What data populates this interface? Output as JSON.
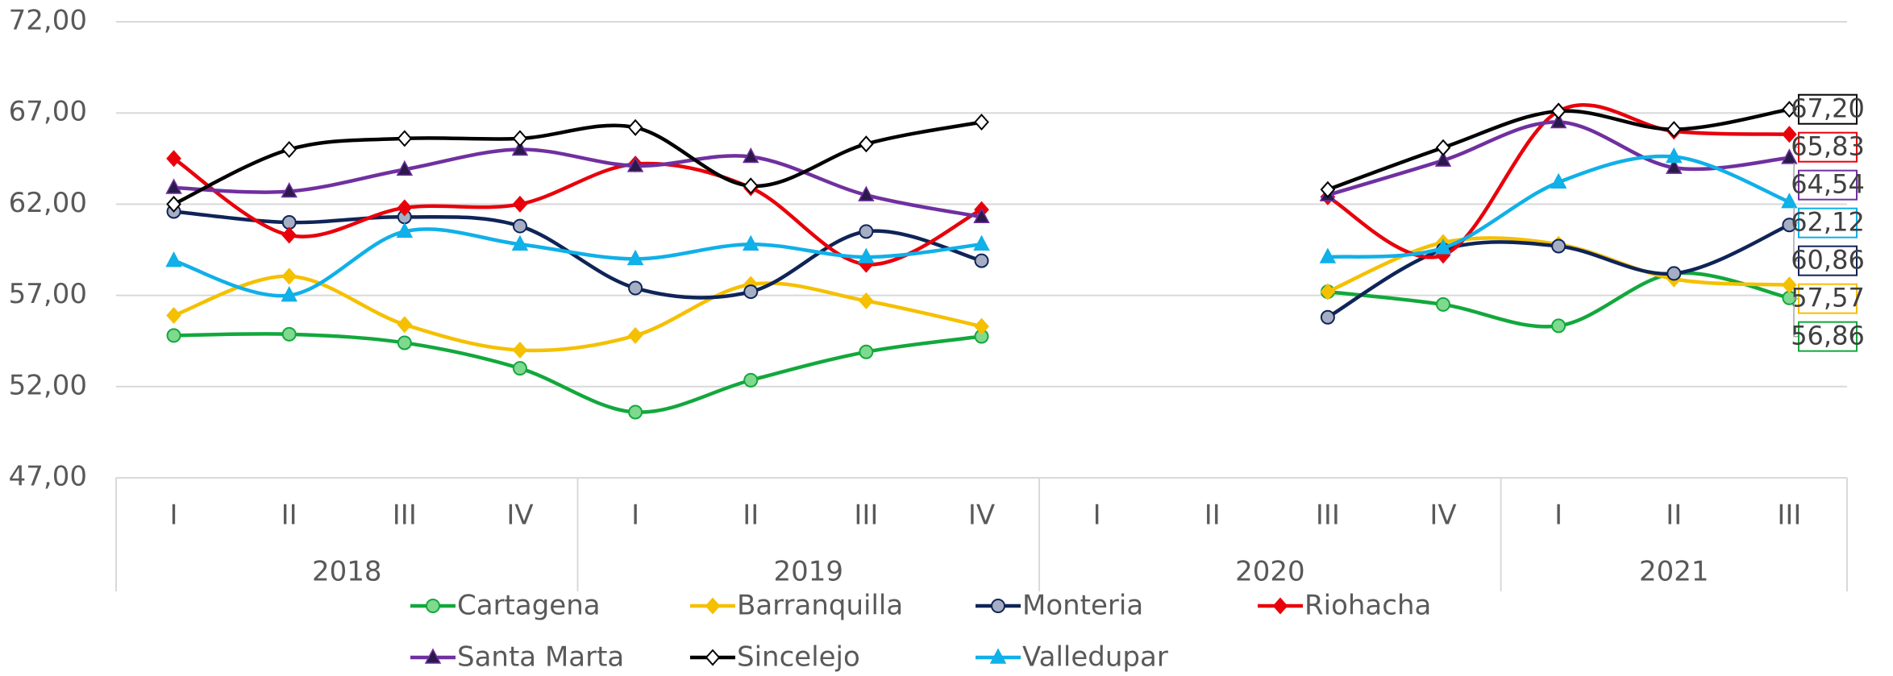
{
  "chart_data": {
    "type": "line",
    "categories": [
      "I",
      "II",
      "III",
      "IV",
      "I",
      "II",
      "III",
      "IV",
      "I",
      "II",
      "III",
      "IV",
      "I",
      "II",
      "III"
    ],
    "groups": [
      "2018",
      "2019",
      "2020",
      "2021"
    ],
    "group_sizes": [
      4,
      4,
      4,
      3
    ],
    "ylim": [
      47,
      72
    ],
    "yticks": [
      {
        "value": 47,
        "label": "47,00"
      },
      {
        "value": 52,
        "label": "52,00"
      },
      {
        "value": 57,
        "label": "57,00"
      },
      {
        "value": 62,
        "label": "62,00"
      },
      {
        "value": 67,
        "label": "67,00"
      },
      {
        "value": 72,
        "label": "72,00"
      }
    ],
    "grid": true,
    "legend": "bottom",
    "series": [
      {
        "name": "Cartagena",
        "color": "#12a83c",
        "marker": "circle",
        "values": [
          54.8,
          54.87,
          54.4,
          53.0,
          50.6,
          52.35,
          53.9,
          54.75,
          null,
          null,
          57.2,
          56.5,
          55.33,
          58.2,
          56.86
        ],
        "value_labels": [
          null,
          null,
          null,
          null,
          null,
          null,
          null,
          null,
          null,
          null,
          null,
          null,
          null,
          null,
          "56,86"
        ]
      },
      {
        "name": "Barranquilla",
        "color": "#f5c000",
        "marker": "diamond",
        "values": [
          55.9,
          58.05,
          55.4,
          54.0,
          54.8,
          57.6,
          56.7,
          55.3,
          null,
          null,
          57.2,
          59.9,
          59.8,
          57.9,
          57.57
        ],
        "value_labels": [
          null,
          null,
          null,
          null,
          null,
          null,
          null,
          null,
          null,
          null,
          null,
          null,
          null,
          null,
          "57,57"
        ]
      },
      {
        "name": "Monteria",
        "color": "#0f2457",
        "marker": "circle",
        "values": [
          61.6,
          61.0,
          61.3,
          60.8,
          57.4,
          57.2,
          60.5,
          58.9,
          null,
          null,
          55.8,
          59.5,
          59.7,
          58.2,
          60.86
        ],
        "value_labels": [
          null,
          null,
          null,
          null,
          null,
          null,
          null,
          null,
          null,
          null,
          null,
          null,
          null,
          null,
          "60,86"
        ]
      },
      {
        "name": "Riohacha",
        "color": "#e8000b",
        "marker": "diamond",
        "values": [
          64.5,
          60.3,
          61.8,
          62.0,
          64.2,
          62.9,
          58.7,
          61.7,
          null,
          null,
          62.4,
          59.2,
          67.1,
          66.0,
          65.83
        ],
        "value_labels": [
          null,
          null,
          null,
          null,
          null,
          null,
          null,
          null,
          null,
          null,
          null,
          null,
          null,
          null,
          "65,83"
        ]
      },
      {
        "name": "Santa Marta",
        "color": "#7030a0",
        "marker": "triangle",
        "values": [
          62.9,
          62.7,
          63.9,
          65.0,
          64.1,
          64.6,
          62.5,
          61.3,
          null,
          null,
          62.5,
          64.4,
          66.5,
          64.0,
          64.54
        ],
        "value_labels": [
          null,
          null,
          null,
          null,
          null,
          null,
          null,
          null,
          null,
          null,
          null,
          null,
          null,
          null,
          "64,54"
        ]
      },
      {
        "name": "Sincelejo",
        "color": "#000000",
        "marker": "diamond-open",
        "values": [
          62.0,
          65.0,
          65.6,
          65.6,
          66.2,
          63.0,
          65.3,
          66.5,
          null,
          null,
          62.8,
          65.1,
          67.1,
          66.1,
          67.2
        ],
        "value_labels": [
          null,
          null,
          null,
          null,
          null,
          null,
          null,
          null,
          null,
          null,
          null,
          null,
          null,
          null,
          "67,20"
        ]
      },
      {
        "name": "Valledupar",
        "color": "#10b0e8",
        "marker": "triangle",
        "values": [
          58.9,
          57.0,
          60.5,
          59.8,
          59.0,
          59.8,
          59.1,
          59.8,
          null,
          null,
          59.1,
          59.6,
          63.2,
          64.6,
          62.12
        ],
        "value_labels": [
          null,
          null,
          null,
          null,
          null,
          null,
          null,
          null,
          null,
          null,
          null,
          null,
          null,
          null,
          "62,12"
        ]
      }
    ]
  }
}
